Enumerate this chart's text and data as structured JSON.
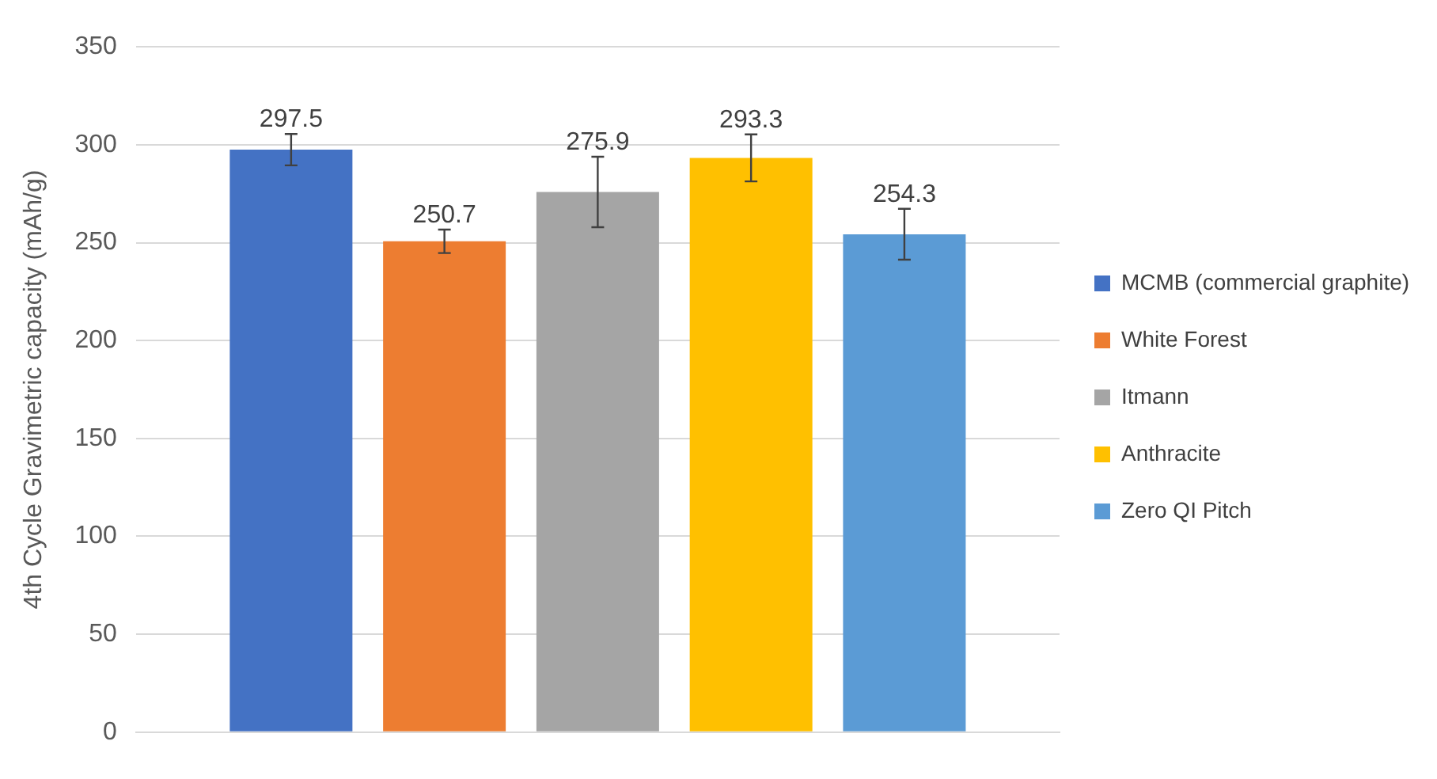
{
  "chart_data": {
    "type": "bar",
    "ylabel": "4th Cycle Gravimetric capacity (mAh/g)",
    "categories": [
      null
    ],
    "series": [
      {
        "name": "MCMB (commercial graphite)",
        "color": "#4472c4",
        "values": [
          297.5
        ],
        "errors": [
          8
        ]
      },
      {
        "name": "White Forest",
        "color": "#ed7d31",
        "values": [
          250.7
        ],
        "errors": [
          6
        ]
      },
      {
        "name": "Itmann",
        "color": "#a5a5a5",
        "values": [
          275.9
        ],
        "errors": [
          18
        ]
      },
      {
        "name": "Anthracite",
        "color": "#ffc000",
        "values": [
          293.3
        ],
        "errors": [
          12
        ]
      },
      {
        "name": "Zero QI Pitch",
        "color": "#5b9bd5",
        "values": [
          254.3
        ],
        "errors": [
          13
        ]
      }
    ],
    "ylim": [
      0,
      350
    ],
    "yticks": [
      0,
      50,
      100,
      150,
      200,
      250,
      300,
      350
    ],
    "grid": "y",
    "legend": "right",
    "data_labels": true
  }
}
